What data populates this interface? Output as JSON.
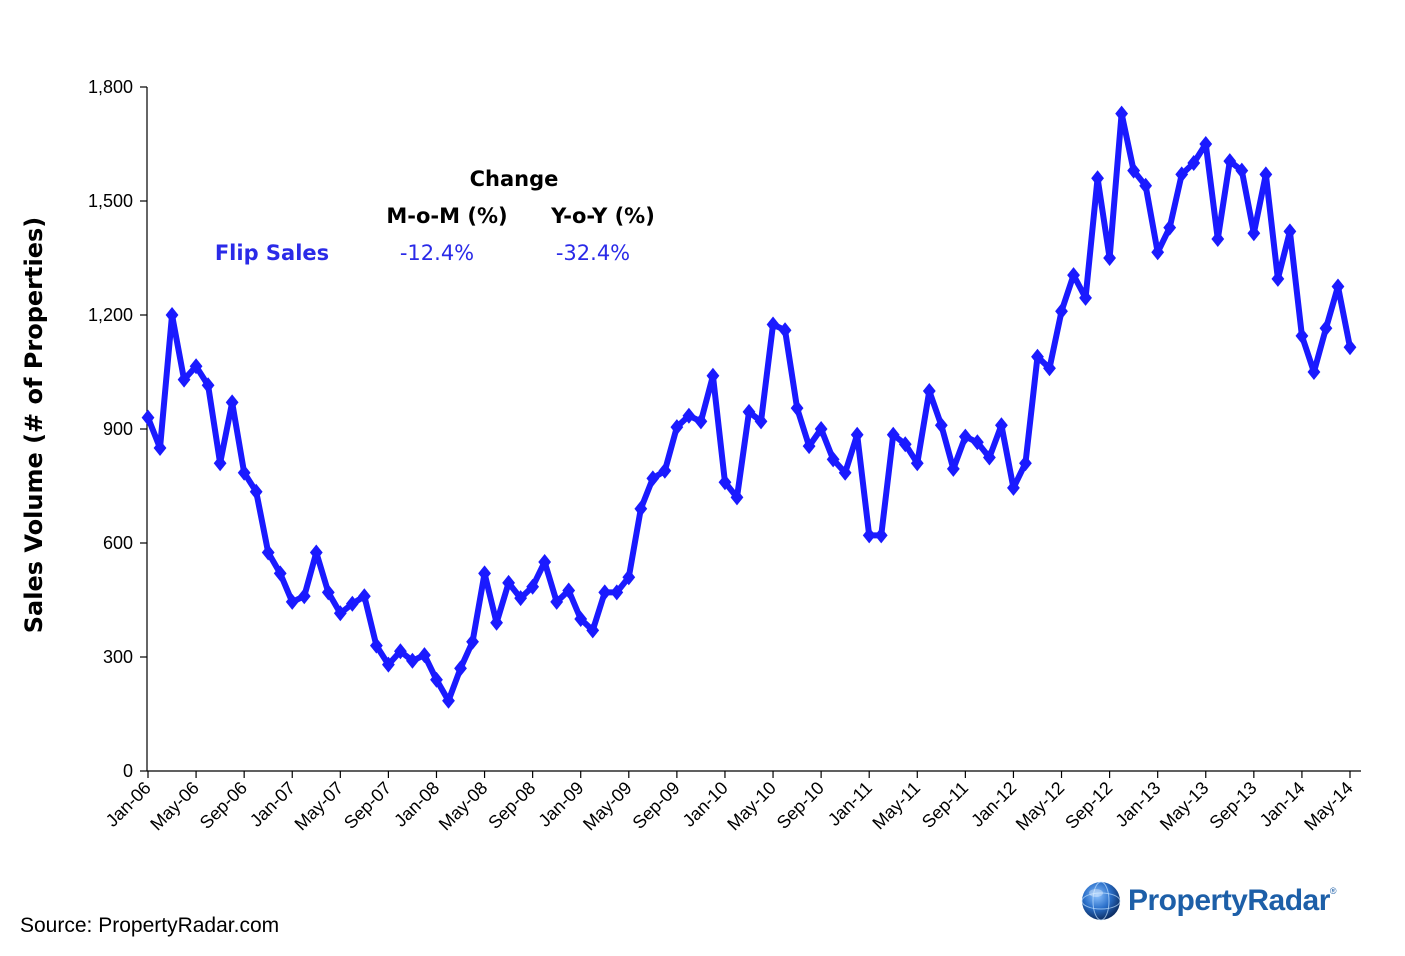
{
  "colors": {
    "series": "#1a1aff",
    "axis": "#000000",
    "table_blue": "#2a2ae8",
    "logo": "#1d5fa8"
  },
  "summary_table": {
    "header": "Change",
    "col_mom": "M-o-M (%)",
    "col_yoy": "Y-o-Y (%)",
    "row_label": "Flip Sales",
    "mom_value": "-12.4%",
    "yoy_value": "-32.4%"
  },
  "source": "Source: PropertyRadar.com",
  "logo": {
    "text": "PropertyRadar",
    "tm": "®",
    "icon": "radar-globe-icon"
  },
  "chart_data": {
    "type": "line",
    "title": "",
    "xlabel": "",
    "ylabel": "Sales Volume (# of Properties)",
    "ylim": [
      0,
      1800
    ],
    "yticks": [
      0,
      300,
      600,
      900,
      1200,
      1500,
      1800
    ],
    "ytick_labels": [
      "0",
      "300",
      "600",
      "900",
      "1,200",
      "1,500",
      "1,800"
    ],
    "xtick_labels": [
      "Jan-06",
      "May-06",
      "Sep-06",
      "Jan-07",
      "May-07",
      "Sep-07",
      "Jan-08",
      "May-08",
      "Sep-08",
      "Jan-09",
      "May-09",
      "Sep-09",
      "Jan-10",
      "May-10",
      "Sep-10",
      "Jan-11",
      "May-11",
      "Sep-11",
      "Jan-12",
      "May-12",
      "Sep-12",
      "Jan-13",
      "May-13",
      "Sep-13",
      "Jan-14",
      "May-14"
    ],
    "xtick_every": 4,
    "marker": "diamond",
    "series": [
      {
        "name": "Flip Sales",
        "values": [
          930,
          850,
          1200,
          1030,
          1065,
          1015,
          810,
          970,
          785,
          735,
          575,
          520,
          445,
          460,
          575,
          470,
          415,
          440,
          460,
          330,
          280,
          315,
          290,
          305,
          240,
          185,
          270,
          340,
          520,
          390,
          495,
          455,
          485,
          550,
          445,
          475,
          400,
          370,
          470,
          470,
          510,
          690,
          770,
          790,
          905,
          935,
          920,
          1040,
          760,
          720,
          945,
          920,
          1175,
          1160,
          955,
          855,
          900,
          820,
          785,
          885,
          620,
          620,
          885,
          860,
          810,
          1000,
          910,
          795,
          880,
          865,
          825,
          910,
          745,
          810,
          1090,
          1060,
          1210,
          1305,
          1245,
          1560,
          1350,
          1730,
          1580,
          1540,
          1365,
          1430,
          1570,
          1600,
          1650,
          1400,
          1605,
          1580,
          1415,
          1570,
          1295,
          1420,
          1145,
          1050,
          1165,
          1275,
          1115
        ]
      }
    ]
  }
}
